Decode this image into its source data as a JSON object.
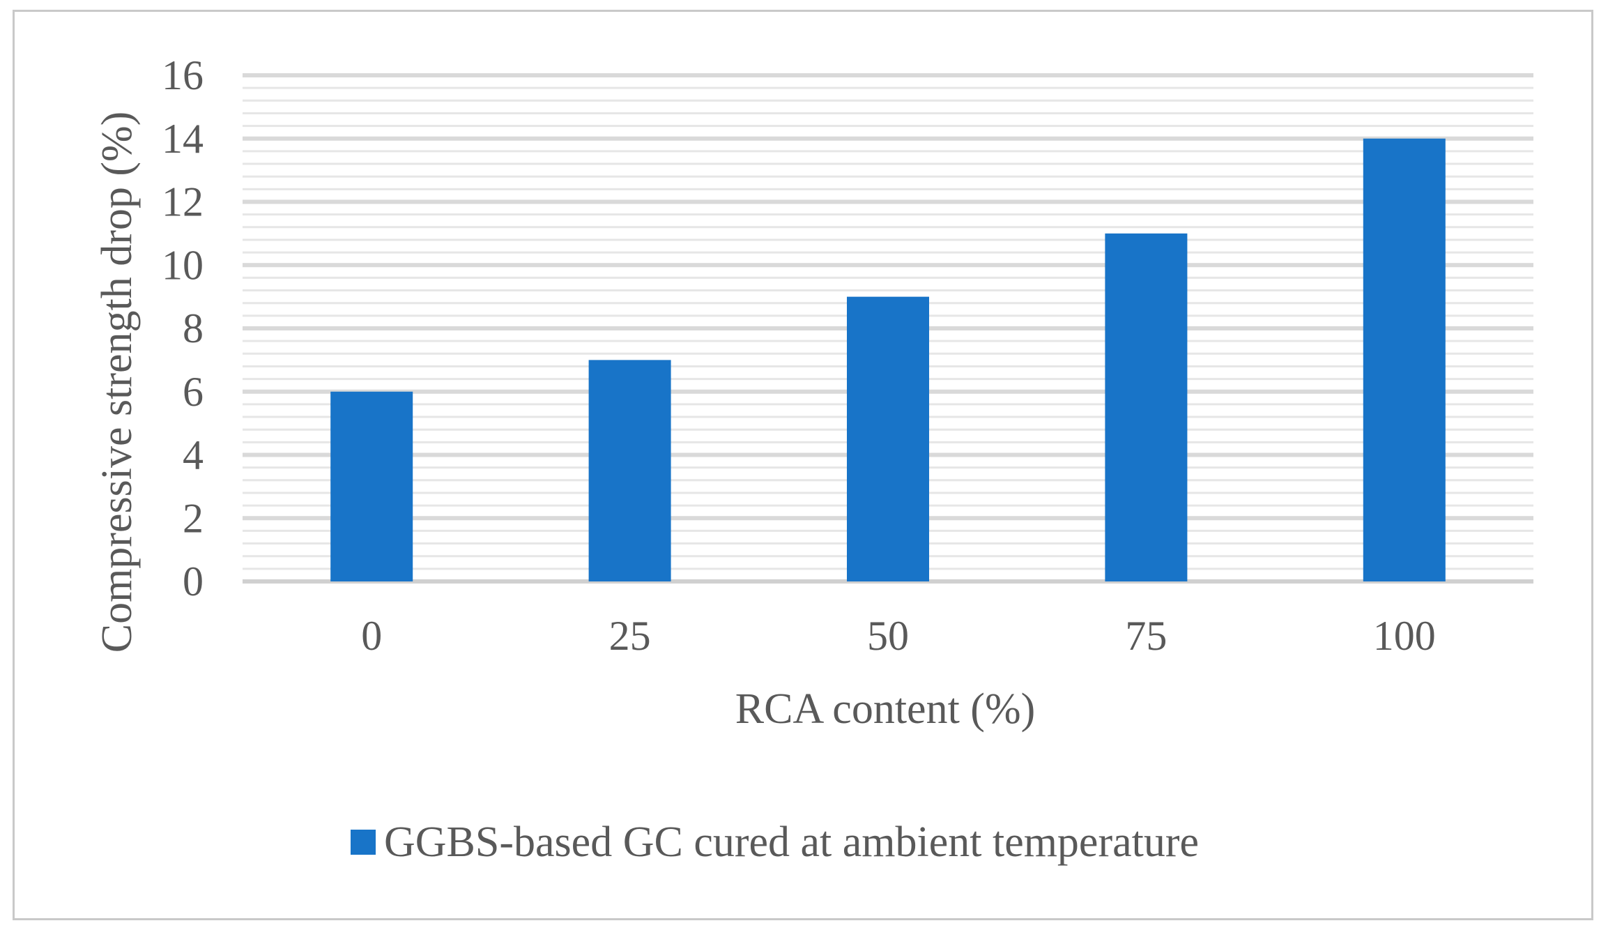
{
  "chart_data": {
    "type": "bar",
    "title": "",
    "xlabel": "RCA content (%)",
    "ylabel": "Compressive strength drop (%)",
    "categories": [
      "0",
      "25",
      "50",
      "75",
      "100"
    ],
    "series": [
      {
        "name": "GGBS-based GC cured at ambient temperature",
        "values": [
          6,
          7,
          9,
          11,
          14
        ],
        "color": "#1874C8"
      }
    ],
    "ylim": [
      0,
      16
    ],
    "yticks": [
      0,
      2,
      4,
      6,
      8,
      10,
      12,
      14,
      16
    ],
    "grid": true,
    "legend": "bottom"
  }
}
